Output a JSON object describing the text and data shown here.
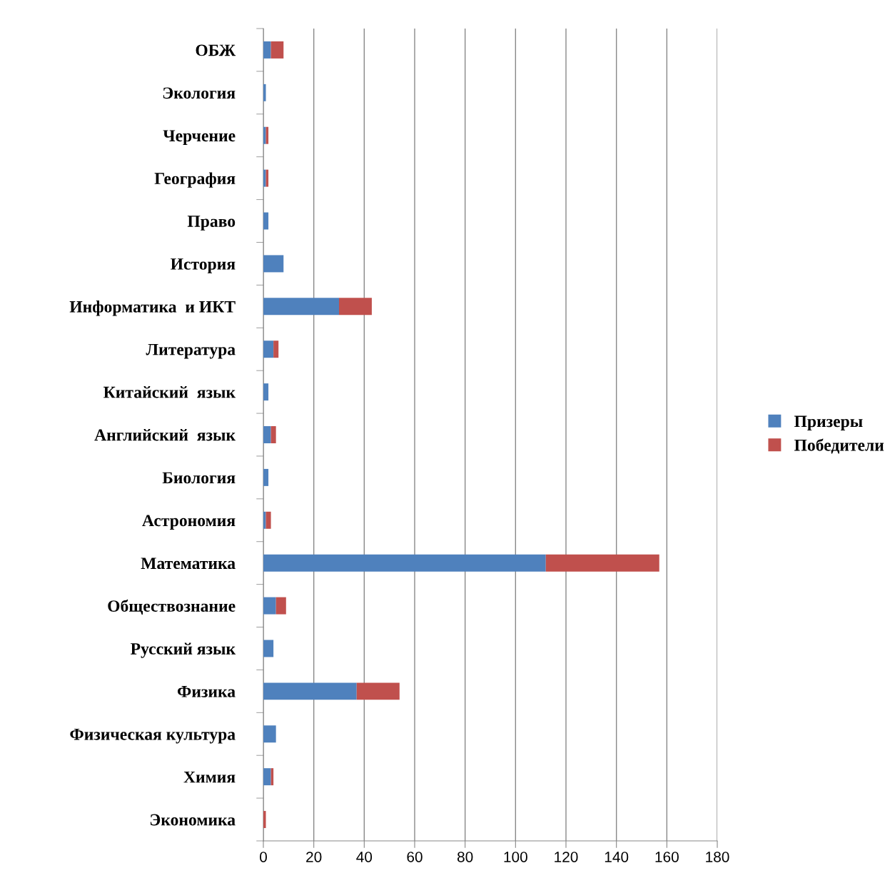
{
  "chart_data": {
    "type": "bar",
    "orientation": "horizontal",
    "stacked": true,
    "categories": [
      "ОБЖ",
      "Экология",
      "Черчение",
      "География",
      "Право",
      "История",
      "Информатика  и ИКТ",
      "Литература",
      "Китайский  язык",
      "Английский  язык",
      "Биология",
      "Астрономия",
      "Математика",
      "Обществознание",
      "Русский язык",
      "Физика",
      "Физическая культура",
      "Химия",
      "Экономика"
    ],
    "series": [
      {
        "name": "Призеры",
        "color": "#4f81bd",
        "values": [
          3,
          1,
          1,
          1,
          2,
          8,
          30,
          4,
          2,
          3,
          2,
          1,
          112,
          5,
          4,
          37,
          5,
          3,
          0
        ]
      },
      {
        "name": "Победители",
        "color": "#c0504d",
        "values": [
          5,
          0,
          1,
          1,
          0,
          0,
          13,
          2,
          0,
          2,
          0,
          2,
          45,
          4,
          0,
          17,
          0,
          1,
          1
        ]
      }
    ],
    "xlim": [
      0,
      180
    ],
    "xticks": [
      0,
      20,
      40,
      60,
      80,
      100,
      120,
      140,
      160,
      180
    ],
    "grid": "x",
    "legend": "right"
  }
}
